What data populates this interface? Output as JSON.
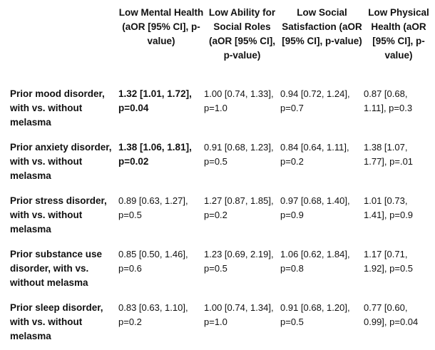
{
  "columns": [
    "",
    "Low Mental Health (aOR [95% CI], p-value)",
    "Low Ability for Social Roles (aOR [95% CI], p-value)",
    "Low Social Satisfaction (aOR [95% CI], p-value)",
    "Low Physical Health (aOR [95% CI], p-value)"
  ],
  "rows": [
    {
      "label": "Prior mood disorder, with vs. without melasma",
      "cells": [
        "1.32 [1.01, 1.72], p=0.04",
        "1.00 [0.74, 1.33], p=1.0",
        "0.94 [0.72, 1.24], p=0.7",
        "0.87 [0.68, 1.11], p=0.3"
      ]
    },
    {
      "label": "Prior anxiety disorder, with vs. without melasma",
      "cells": [
        "1.38 [1.06, 1.81], p=0.02",
        "0.91 [0.68, 1.23], p=0.5",
        "0.84 [0.64, 1.11], p=0.2",
        "1.38 [1.07, 1.77], p=.01"
      ]
    },
    {
      "label": "Prior stress disorder,  with vs. without melasma",
      "cells": [
        "0.89 [0.63, 1.27], p=0.5",
        "1.27 [0.87, 1.85], p=0.2",
        "0.97 [0.68, 1.40], p=0.9",
        "1.01 [0.73, 1.41], p=0.9"
      ]
    },
    {
      "label": "Prior substance use disorder, with vs. without melasma",
      "cells": [
        "0.85 [0.50, 1.46], p=0.6",
        "1.23 [0.69, 2.19], p=0.5",
        "1.06 [0.62, 1.84], p=0.8",
        "1.17 [0.71, 1.92], p=0.5"
      ]
    },
    {
      "label": "Prior sleep disorder,  with vs. without melasma",
      "cells": [
        "0.83 [0.63, 1.10], p=0.2",
        "1.00 [0.74, 1.34], p=1.0",
        "0.91 [0.68, 1.20], p=0.5",
        "0.77 [0.60, 0.99], p=0.04"
      ]
    }
  ]
}
